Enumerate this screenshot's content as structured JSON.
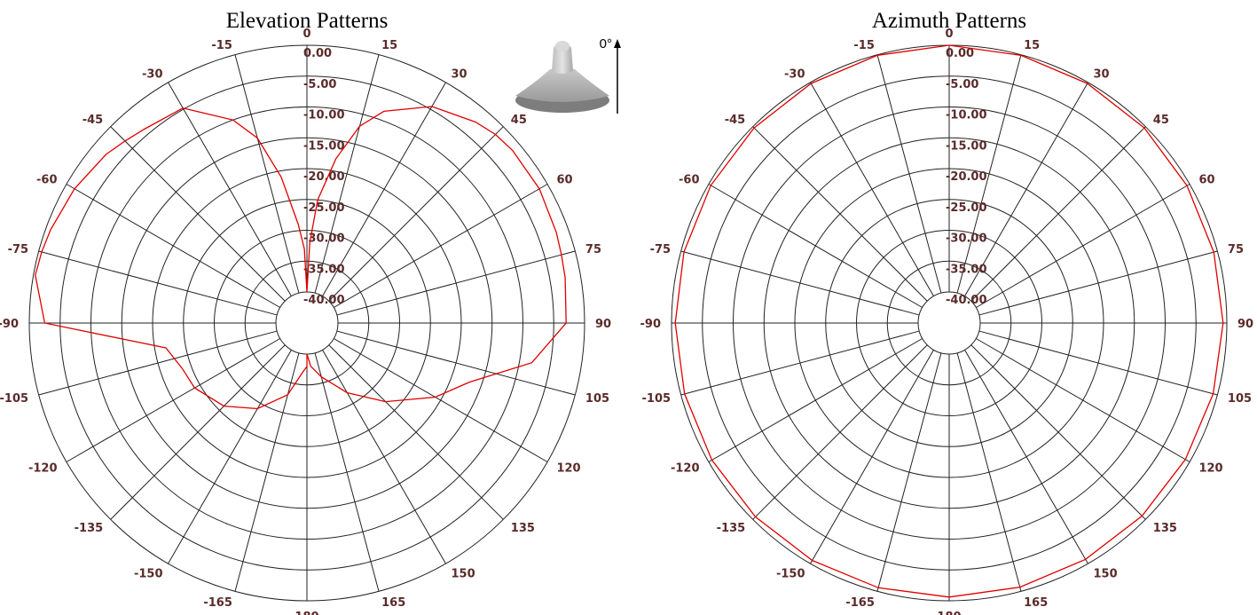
{
  "orientation_label": "0°",
  "chart_data": [
    {
      "type": "polar",
      "title": "Elevation Patterns",
      "angle_ticks": [
        "0",
        "15",
        "30",
        "45",
        "60",
        "75",
        "90",
        "105",
        "120",
        "135",
        "150",
        "165",
        "180",
        "-165",
        "-150",
        "-135",
        "-120",
        "-105",
        "-90",
        "-75",
        "-60",
        "-45",
        "-30",
        "-15"
      ],
      "ring_labels": [
        "0.00",
        "-5.00",
        "-10.00",
        "-15.00",
        "-20.00",
        "-25.00",
        "-30.00",
        "-35.00",
        "-40.00"
      ],
      "r_range_db": [
        -40,
        0
      ],
      "angle_unit": "degrees",
      "grid": true,
      "series": [
        {
          "color": "#e00000",
          "angle": [
            -180,
            -175,
            -165,
            -150,
            -135,
            -120,
            -110,
            -100,
            -90,
            -80,
            -75,
            -70,
            -60,
            -50,
            -45,
            -40,
            -30,
            -20,
            -15,
            -10,
            -5,
            -2,
            0,
            2,
            5,
            10,
            15,
            20,
            30,
            40,
            45,
            50,
            60,
            70,
            75,
            80,
            90,
            100,
            110,
            120,
            135,
            150,
            165,
            175,
            180
          ],
          "gain_db": [
            -38,
            -37,
            -33,
            -29,
            -26,
            -24,
            -23.5,
            -21.8,
            -2.5,
            -0.3,
            -0.5,
            -0.8,
            -1.5,
            -2.5,
            -3.3,
            -4.0,
            -4.8,
            -10.0,
            -14.0,
            -21.0,
            -29.0,
            -33.0,
            -40.0,
            -32.0,
            -25.0,
            -18.0,
            -12.0,
            -8.5,
            -4.5,
            -2.5,
            -1.8,
            -1.5,
            -1.5,
            -2.0,
            -2.3,
            -2.5,
            -3.0,
            -8.0,
            -17.0,
            -21.0,
            -27.0,
            -32.0,
            -36.0,
            -38.0,
            -40.0
          ]
        }
      ]
    },
    {
      "type": "polar",
      "title": "Azimuth Patterns",
      "angle_ticks": [
        "0",
        "15",
        "30",
        "45",
        "60",
        "75",
        "90",
        "105",
        "120",
        "135",
        "150",
        "165",
        "180",
        "-165",
        "-150",
        "-135",
        "-120",
        "-105",
        "-90",
        "-75",
        "-60",
        "-45",
        "-30",
        "-15"
      ],
      "ring_labels": [
        "0.00",
        "-5.00",
        "-10.00",
        "-15.00",
        "-20.00",
        "-25.00",
        "-30.00",
        "-35.00",
        "-40.00"
      ],
      "r_range_db": [
        -40,
        0
      ],
      "angle_unit": "degrees",
      "grid": true,
      "series": [
        {
          "color": "#e00000",
          "angle": [
            -180,
            -165,
            -150,
            -135,
            -120,
            -105,
            -90,
            -75,
            -60,
            -45,
            -30,
            -15,
            0,
            15,
            30,
            45,
            60,
            75,
            90,
            105,
            120,
            135,
            150,
            165,
            180
          ],
          "gain_db": [
            -0.6,
            -0.6,
            -0.6,
            -0.6,
            -0.6,
            -0.6,
            -0.6,
            -0.5,
            -0.4,
            -0.3,
            -0.2,
            -0.1,
            0.0,
            -0.1,
            -0.2,
            -0.3,
            -0.5,
            -0.6,
            -0.6,
            -0.7,
            -0.8,
            -0.8,
            -0.8,
            -0.7,
            -0.6
          ]
        }
      ]
    }
  ]
}
